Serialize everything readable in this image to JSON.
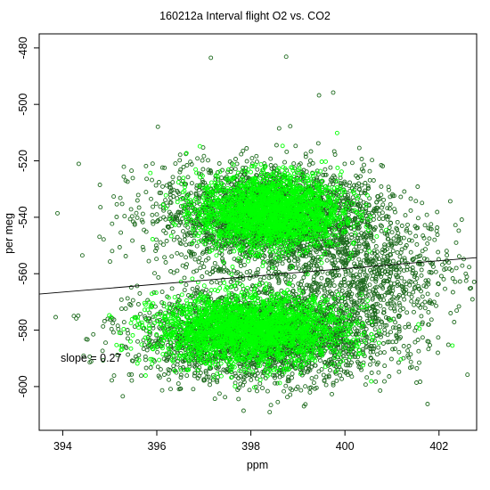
{
  "chart_data": {
    "type": "scatter",
    "title": "160212a   Interval flight O2 vs. CO2",
    "xlabel": "ppm",
    "ylabel": "per meg",
    "xlim": [
      393.5,
      402.8
    ],
    "ylim": [
      -615.5,
      -475
    ],
    "x_ticks": [
      394,
      396,
      398,
      400,
      402
    ],
    "y_ticks": [
      -600,
      -580,
      -560,
      -540,
      -520,
      -500,
      -480
    ],
    "grid": false,
    "annotation": "slope =  0.27",
    "regression_line": {
      "x": [
        393.5,
        402.8
      ],
      "y": [
        -567.2,
        -554.3
      ]
    },
    "colors": {
      "series_dark": "#1f6b1f",
      "series_bright": "#00ff00",
      "axis": "#000000",
      "fit_line": "#000000"
    },
    "series": [
      {
        "color": "#1f6b1f",
        "clusters": [
          {
            "cx": 398.4,
            "cy": -540,
            "sx": 1.2,
            "sy": 9,
            "n": 2600
          },
          {
            "cx": 398.3,
            "cy": -582,
            "sx": 1.35,
            "sy": 8,
            "n": 2600
          },
          {
            "cx": 400.5,
            "cy": -560,
            "sx": 1.0,
            "sy": 9,
            "n": 700
          }
        ],
        "outliers": [
          [
            397.15,
            -483.5
          ],
          [
            398.75,
            -483.1
          ],
          [
            399.45,
            -496.8
          ],
          [
            399.75,
            -495.8
          ],
          [
            398.6,
            -508.5
          ],
          [
            393.85,
            -575.4
          ],
          [
            395.05,
            -542.3
          ],
          [
            402.35,
            -542.8
          ],
          [
            401.6,
            -598.3
          ],
          [
            394.5,
            -583.2
          ],
          [
            395.3,
            -522.1
          ],
          [
            402.2,
            -585.2
          ]
        ]
      },
      {
        "color": "#00ff00",
        "clusters": [
          {
            "cx": 398.4,
            "cy": -538,
            "sx": 0.75,
            "sy": 6.5,
            "n": 2200
          },
          {
            "cx": 398.0,
            "cy": -580,
            "sx": 1.0,
            "sy": 6,
            "n": 2400
          }
        ],
        "outliers": []
      }
    ]
  }
}
